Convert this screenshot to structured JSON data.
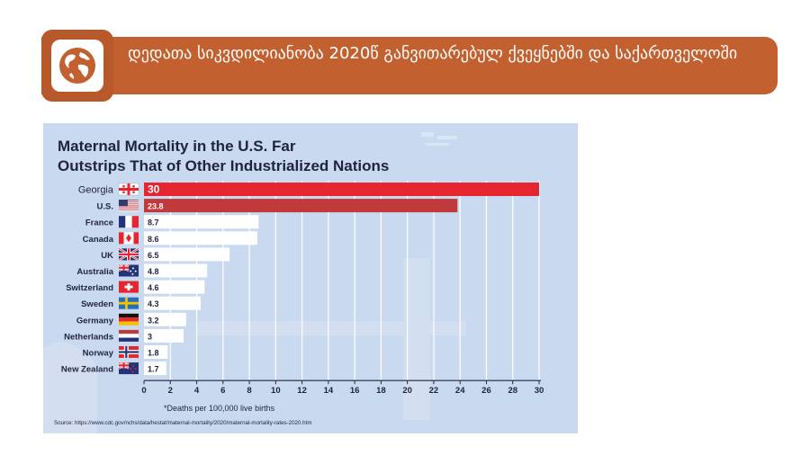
{
  "header": {
    "title": "დედათა სიკვდილიანობა 2020წ განვითარებულ ქვეყნებში და საქართველოში",
    "icon": "globe-icon"
  },
  "colors": {
    "banner": "#c2602f",
    "highlight_bar": "#e52630",
    "us_bar": "#c0393b",
    "bar": "#ffffff",
    "chart_bg": "#c9d9ef"
  },
  "chart_data": {
    "type": "bar",
    "orientation": "horizontal",
    "title": "Maternal Mortality in the U.S. Far Outstrips That of Other Industrialized Nations",
    "title_lines": [
      "Maternal Mortality in the U.S. Far",
      "Outstrips That of Other Industrialized Nations"
    ],
    "categories": [
      "Georgia",
      "U.S.",
      "France",
      "Canada",
      "UK",
      "Australia",
      "Switzerland",
      "Sweden",
      "Germany",
      "Netherlands",
      "Norway",
      "New Zealand"
    ],
    "values": [
      30,
      23.8,
      8.7,
      8.6,
      6.5,
      4.8,
      4.6,
      4.3,
      3.2,
      3,
      1.8,
      1.7
    ],
    "value_labels": [
      "30",
      "23.8",
      "8.7",
      "8.6",
      "6.5",
      "4.8",
      "4.6",
      "4.3",
      "3.2",
      "3",
      "1.8",
      "1.7"
    ],
    "flags": [
      "flag-georgia",
      "flag-us",
      "flag-france",
      "flag-canada",
      "flag-uk",
      "flag-australia",
      "flag-switzerland",
      "flag-sweden",
      "flag-germany",
      "flag-netherlands",
      "flag-norway",
      "flag-new-zealand"
    ],
    "x_ticks": [
      "0",
      "2",
      "4",
      "6",
      "8",
      "10",
      "12",
      "14",
      "16",
      "18",
      "20",
      "22",
      "24",
      "26",
      "28",
      "30"
    ],
    "xlim": [
      0,
      30
    ],
    "xlabel": "*Deaths per 100,000 live births",
    "source": "Source: https://www.cdc.gov/nchs/data/hestat/maternal-mortality/2020/maternal-mortality-rates-2020.htm",
    "grid": true
  }
}
